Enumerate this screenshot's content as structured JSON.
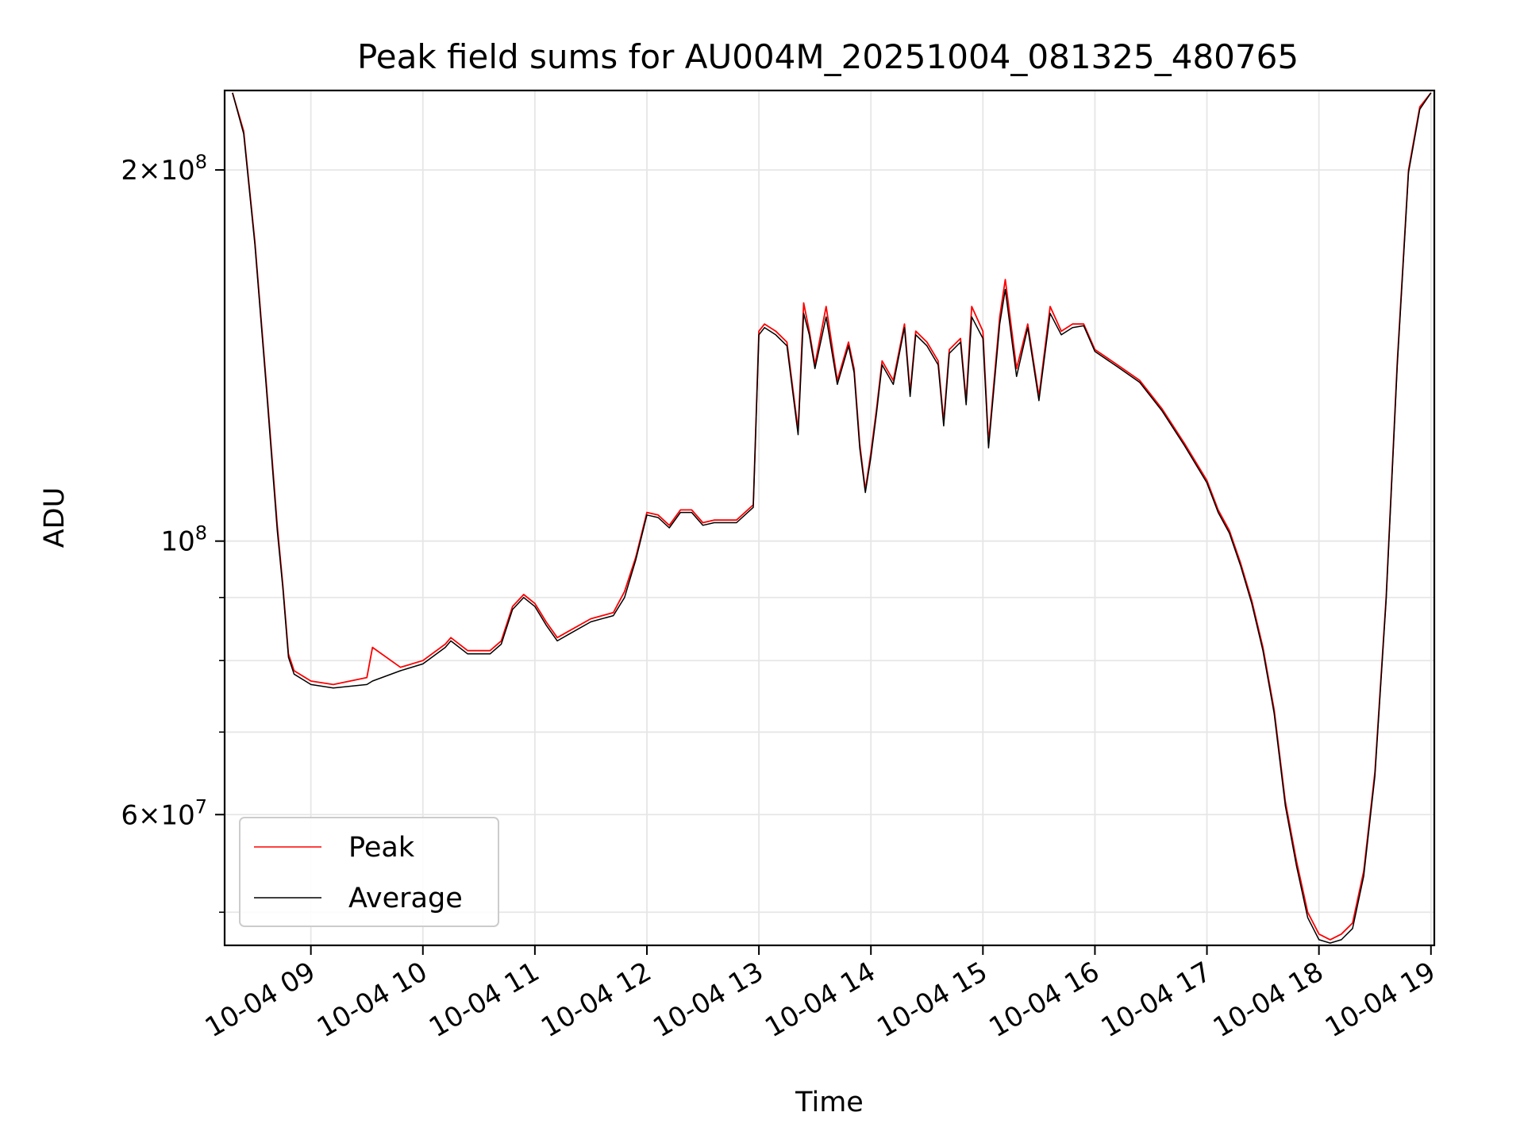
{
  "chart_data": {
    "type": "line",
    "title": "Peak field sums for AU004M_20251004_081325_480765",
    "xlabel": "Time",
    "ylabel": "ADU",
    "yscale": "log",
    "grid": true,
    "legend_position": "lower-left",
    "x_unit": "hours since 10-04 00:00",
    "xlim": [
      8.23,
      19.03
    ],
    "ylim": [
      47000000,
      232000000
    ],
    "x_ticks": [
      {
        "value": 9,
        "label": "10-04 09"
      },
      {
        "value": 10,
        "label": "10-04 10"
      },
      {
        "value": 11,
        "label": "10-04 11"
      },
      {
        "value": 12,
        "label": "10-04 12"
      },
      {
        "value": 13,
        "label": "10-04 13"
      },
      {
        "value": 14,
        "label": "10-04 14"
      },
      {
        "value": 15,
        "label": "10-04 15"
      },
      {
        "value": 16,
        "label": "10-04 16"
      },
      {
        "value": 17,
        "label": "10-04 17"
      },
      {
        "value": 18,
        "label": "10-04 18"
      },
      {
        "value": 19,
        "label": "10-04 19"
      }
    ],
    "y_major_ticks": [
      {
        "value": 60000000,
        "mantissa": "6",
        "exponent": "7"
      },
      {
        "value": 100000000,
        "mantissa": "",
        "exponent": "8"
      },
      {
        "value": 200000000,
        "mantissa": "2",
        "exponent": "8"
      }
    ],
    "y_minor_ticks": [
      50000000,
      70000000,
      80000000,
      90000000
    ],
    "series": [
      {
        "name": "Peak",
        "color": "#ff0000",
        "x": [
          8.3,
          8.4,
          8.5,
          8.6,
          8.7,
          8.75,
          8.8,
          8.85,
          9.0,
          9.2,
          9.5,
          9.55,
          9.8,
          10.0,
          10.2,
          10.25,
          10.4,
          10.6,
          10.7,
          10.8,
          10.9,
          11.0,
          11.1,
          11.2,
          11.3,
          11.5,
          11.7,
          11.8,
          11.9,
          12.0,
          12.1,
          12.2,
          12.3,
          12.4,
          12.5,
          12.6,
          12.8,
          12.95,
          13.0,
          13.05,
          13.15,
          13.25,
          13.35,
          13.4,
          13.45,
          13.5,
          13.6,
          13.7,
          13.8,
          13.85,
          13.9,
          13.95,
          14.0,
          14.05,
          14.1,
          14.2,
          14.3,
          14.35,
          14.4,
          14.5,
          14.6,
          14.65,
          14.7,
          14.8,
          14.85,
          14.9,
          15.0,
          15.05,
          15.15,
          15.2,
          15.3,
          15.4,
          15.5,
          15.6,
          15.7,
          15.8,
          15.9,
          16.0,
          16.2,
          16.4,
          16.6,
          16.8,
          17.0,
          17.1,
          17.2,
          17.3,
          17.4,
          17.5,
          17.6,
          17.7,
          17.8,
          17.9,
          18.0,
          18.1,
          18.2,
          18.3,
          18.4,
          18.5,
          18.6,
          18.7,
          18.8,
          18.9,
          19.0
        ],
        "y": [
          231000000,
          215000000,
          175000000,
          135000000,
          103000000,
          92000000,
          81000000,
          78500000,
          77000000,
          76500000,
          77500000,
          82000000,
          79000000,
          80000000,
          82500000,
          83500000,
          81500000,
          81500000,
          83000000,
          88500000,
          90500000,
          89000000,
          86000000,
          83500000,
          84500000,
          86500000,
          87500000,
          91000000,
          97000000,
          105500000,
          105000000,
          103000000,
          106000000,
          106000000,
          103500000,
          104000000,
          104000000,
          107000000,
          148000000,
          150000000,
          148000000,
          145000000,
          123000000,
          156000000,
          148000000,
          139000000,
          155000000,
          135000000,
          145000000,
          138000000,
          120000000,
          110000000,
          118000000,
          128000000,
          140000000,
          135000000,
          150000000,
          132000000,
          148000000,
          145000000,
          140000000,
          125000000,
          143000000,
          146000000,
          130000000,
          155000000,
          148000000,
          120000000,
          152000000,
          163000000,
          138000000,
          150000000,
          131000000,
          155000000,
          148000000,
          150000000,
          150000000,
          143000000,
          139000000,
          135000000,
          128000000,
          120000000,
          112000000,
          106000000,
          102000000,
          96000000,
          89500000,
          82000000,
          73000000,
          61500000,
          55000000,
          50000000,
          48000000,
          47500000,
          48000000,
          49000000,
          54000000,
          65000000,
          90000000,
          140000000,
          200000000,
          225000000,
          231000000
        ]
      },
      {
        "name": "Average",
        "color": "#000000",
        "x": [
          8.3,
          8.4,
          8.5,
          8.6,
          8.7,
          8.75,
          8.8,
          8.85,
          9.0,
          9.2,
          9.5,
          9.55,
          9.8,
          10.0,
          10.2,
          10.25,
          10.4,
          10.6,
          10.7,
          10.8,
          10.9,
          11.0,
          11.1,
          11.2,
          11.3,
          11.5,
          11.7,
          11.8,
          11.9,
          12.0,
          12.1,
          12.2,
          12.3,
          12.4,
          12.5,
          12.6,
          12.8,
          12.95,
          13.0,
          13.05,
          13.15,
          13.25,
          13.35,
          13.4,
          13.45,
          13.5,
          13.6,
          13.7,
          13.8,
          13.85,
          13.9,
          13.95,
          14.0,
          14.05,
          14.1,
          14.2,
          14.3,
          14.35,
          14.4,
          14.5,
          14.6,
          14.65,
          14.7,
          14.8,
          14.85,
          14.9,
          15.0,
          15.05,
          15.15,
          15.2,
          15.3,
          15.4,
          15.5,
          15.6,
          15.7,
          15.8,
          15.9,
          16.0,
          16.2,
          16.4,
          16.6,
          16.8,
          17.0,
          17.1,
          17.2,
          17.3,
          17.4,
          17.5,
          17.6,
          17.7,
          17.8,
          17.9,
          18.0,
          18.1,
          18.2,
          18.3,
          18.4,
          18.5,
          18.6,
          18.7,
          18.8,
          18.9,
          19.0
        ],
        "y": [
          231000000,
          214000000,
          174000000,
          134000000,
          102000000,
          91500000,
          80500000,
          78000000,
          76500000,
          76000000,
          76500000,
          77000000,
          78500000,
          79500000,
          82000000,
          83000000,
          81000000,
          81000000,
          82500000,
          88000000,
          90000000,
          88500000,
          85500000,
          83000000,
          84000000,
          86000000,
          87000000,
          90000000,
          96500000,
          105000000,
          104500000,
          102500000,
          105500000,
          105500000,
          103000000,
          103500000,
          103500000,
          106500000,
          147000000,
          149000000,
          147000000,
          144000000,
          122000000,
          153000000,
          147000000,
          138000000,
          152000000,
          134000000,
          144000000,
          137000000,
          119000000,
          109500000,
          117000000,
          127000000,
          139000000,
          134000000,
          149000000,
          131000000,
          147000000,
          144000000,
          139000000,
          124000000,
          142000000,
          145000000,
          129000000,
          152000000,
          146000000,
          119000000,
          150000000,
          160000000,
          136000000,
          149000000,
          130000000,
          153000000,
          147000000,
          149000000,
          149500000,
          142500000,
          138500000,
          134500000,
          127500000,
          119500000,
          111500000,
          105500000,
          101500000,
          95500000,
          89000000,
          81500000,
          72500000,
          61000000,
          54500000,
          49500000,
          47500000,
          47200000,
          47500000,
          48500000,
          53500000,
          64500000,
          89500000,
          139000000,
          199000000,
          224000000,
          231000000
        ]
      }
    ]
  }
}
